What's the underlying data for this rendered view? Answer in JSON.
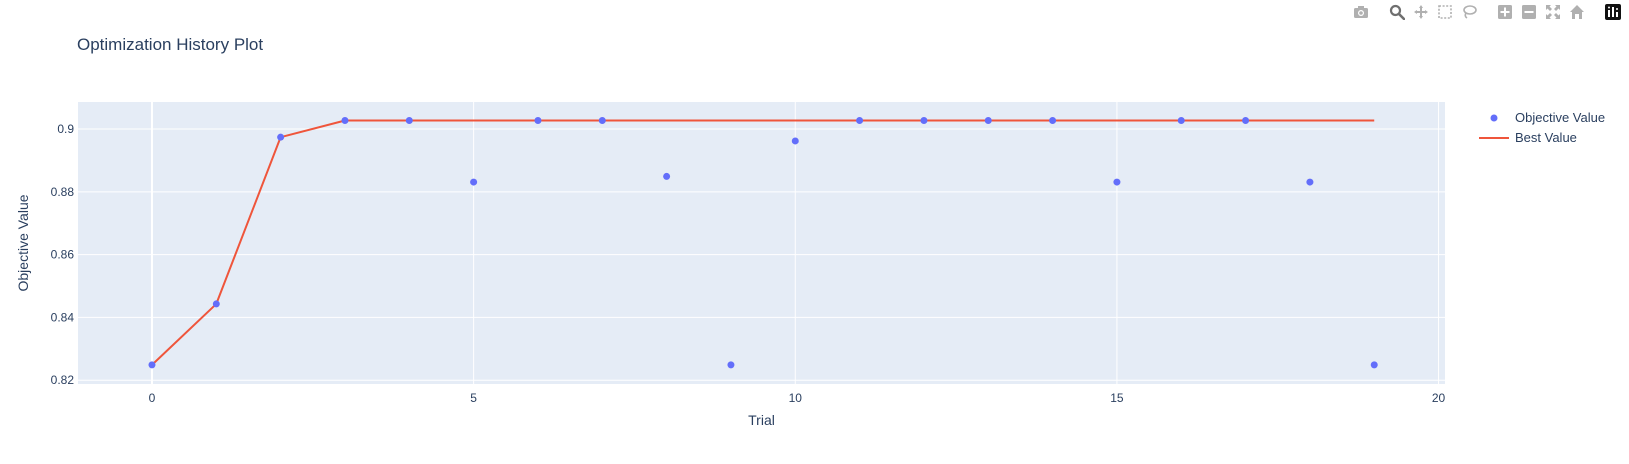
{
  "modebar": {
    "buttons": [
      {
        "icon": "camera-icon",
        "title": "Download plot as a png"
      },
      {
        "icon": "zoom-icon",
        "title": "Zoom"
      },
      {
        "icon": "pan-icon",
        "title": "Pan"
      },
      {
        "icon": "box-select-icon",
        "title": "Box Select"
      },
      {
        "icon": "lasso-select-icon",
        "title": "Lasso Select"
      },
      {
        "icon": "zoom-in-icon",
        "title": "Zoom in"
      },
      {
        "icon": "zoom-out-icon",
        "title": "Zoom out"
      },
      {
        "icon": "autoscale-icon",
        "title": "Autoscale"
      },
      {
        "icon": "reset-axes-icon",
        "title": "Reset axes"
      },
      {
        "icon": "plotly-logo-icon",
        "title": "Produced with Plotly"
      }
    ],
    "icon_color": "#b0b0b0",
    "active_color": "#6f6f6f"
  },
  "chart_data": {
    "type": "scatter",
    "title": "Optimization History Plot",
    "xlabel": "Trial",
    "ylabel": "Objective Value",
    "xlim": [
      -1.15,
      20.1
    ],
    "ylim": [
      0.8188,
      0.9086
    ],
    "xticks": [
      0,
      5,
      10,
      15,
      20
    ],
    "yticks": [
      0.82,
      0.84,
      0.86,
      0.88,
      0.9
    ],
    "grid": true,
    "legend_position": "top-right",
    "plot_bg": "#e5ecf6",
    "series": [
      {
        "name": "Objective Value",
        "mode": "markers",
        "color": "#636efa",
        "x": [
          0,
          1,
          2,
          3,
          4,
          5,
          6,
          7,
          8,
          9,
          10,
          11,
          12,
          13,
          14,
          15,
          16,
          17,
          18,
          19
        ],
        "y": [
          0.8249,
          0.8443,
          0.8974,
          0.9027,
          0.9027,
          0.8831,
          0.9027,
          0.9027,
          0.8849,
          0.8249,
          0.8962,
          0.9027,
          0.9027,
          0.9027,
          0.9027,
          0.8831,
          0.9027,
          0.9027,
          0.8831,
          0.8249
        ]
      },
      {
        "name": "Best Value",
        "mode": "lines",
        "color": "#ef553b",
        "x": [
          0,
          1,
          2,
          3,
          4,
          5,
          6,
          7,
          8,
          9,
          10,
          11,
          12,
          13,
          14,
          15,
          16,
          17,
          18,
          19
        ],
        "y": [
          0.8249,
          0.8443,
          0.8974,
          0.9027,
          0.9027,
          0.9027,
          0.9027,
          0.9027,
          0.9027,
          0.9027,
          0.9027,
          0.9027,
          0.9027,
          0.9027,
          0.9027,
          0.9027,
          0.9027,
          0.9027,
          0.9027,
          0.9027
        ]
      }
    ]
  }
}
